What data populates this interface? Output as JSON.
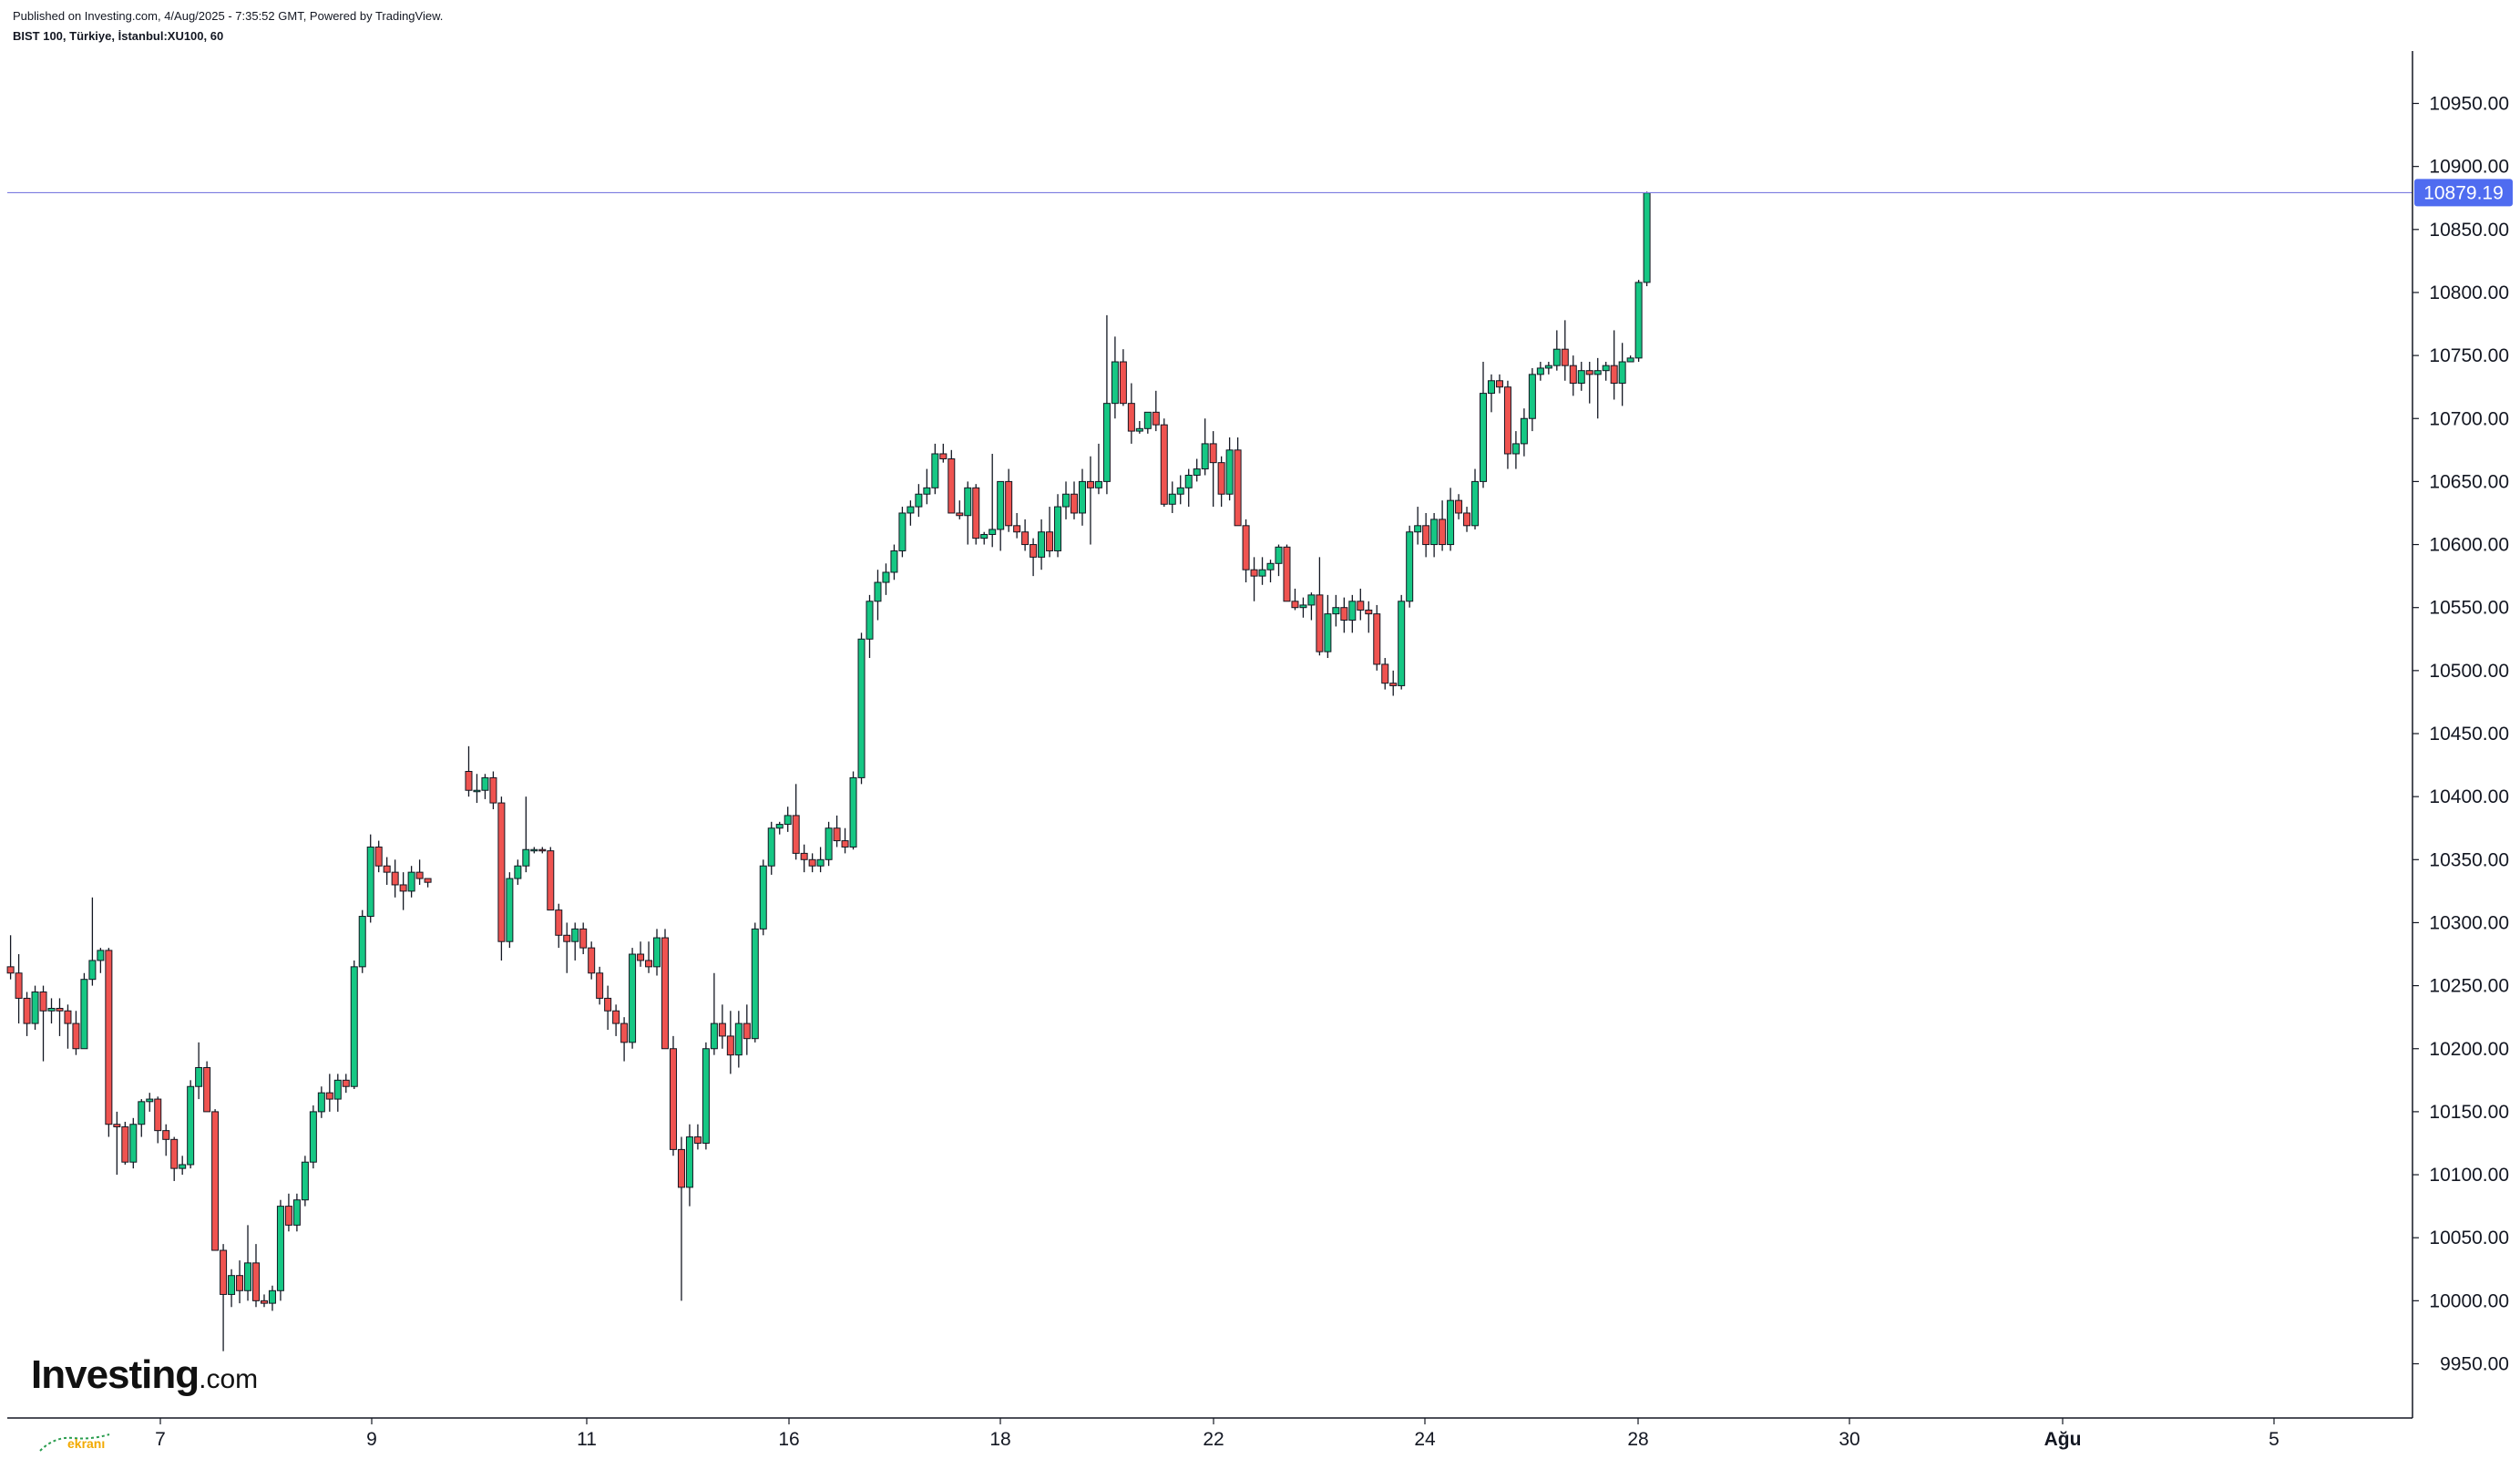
{
  "header": {
    "published": "Published on Investing.com, 4/Aug/2025 - 7:35:52 GMT, Powered by TradingView.",
    "symbol": "BIST 100, Türkiye, İstanbul:XU100, 60"
  },
  "logo": {
    "main": "Investing",
    "suffix": ".com"
  },
  "watermark": "ekranı",
  "colors": {
    "up": "#089981",
    "upBody": "#16c784",
    "down": "#ef5350",
    "wick": "#131722",
    "priceLine": "#7b7be0",
    "priceTag": "#4f6cf0"
  },
  "chart_data": {
    "type": "candlestick",
    "price_label": "10879.19",
    "last_price": 10879.19,
    "ylim": [
      9910,
      10990
    ],
    "y_ticks": [
      "9950.00",
      "10000.00",
      "10050.00",
      "10100.00",
      "10150.00",
      "10200.00",
      "10250.00",
      "10300.00",
      "10350.00",
      "10400.00",
      "10450.00",
      "10500.00",
      "10550.00",
      "10600.00",
      "10650.00",
      "10700.00",
      "10750.00",
      "10800.00",
      "10850.00",
      "10900.00",
      "10950.00"
    ],
    "x_ticks": [
      "7",
      "9",
      "11",
      "16",
      "18",
      "22",
      "24",
      "28",
      "30",
      "Ağu",
      "5"
    ],
    "grid": false,
    "candles": [
      [
        10265,
        10290,
        10255,
        10260
      ],
      [
        10260,
        10275,
        10220,
        10240
      ],
      [
        10240,
        10245,
        10210,
        10220
      ],
      [
        10220,
        10250,
        10215,
        10245
      ],
      [
        10245,
        10250,
        10190,
        10230
      ],
      [
        10230,
        10240,
        10220,
        10232
      ],
      [
        10232,
        10240,
        10210,
        10230
      ],
      [
        10230,
        10235,
        10200,
        10220
      ],
      [
        10220,
        10230,
        10195,
        10200
      ],
      [
        10200,
        10260,
        10200,
        10255
      ],
      [
        10255,
        10320,
        10250,
        10270
      ],
      [
        10270,
        10280,
        10260,
        10278
      ],
      [
        10278,
        10280,
        10130,
        10140
      ],
      [
        10140,
        10150,
        10100,
        10138
      ],
      [
        10138,
        10142,
        10108,
        10110
      ],
      [
        10110,
        10145,
        10105,
        10140
      ],
      [
        10140,
        10160,
        10130,
        10158
      ],
      [
        10158,
        10165,
        10150,
        10160
      ],
      [
        10160,
        10162,
        10125,
        10135
      ],
      [
        10135,
        10140,
        10115,
        10128
      ],
      [
        10128,
        10130,
        10095,
        10105
      ],
      [
        10105,
        10115,
        10100,
        10108
      ],
      [
        10108,
        10175,
        10105,
        10170
      ],
      [
        10170,
        10205,
        10160,
        10185
      ],
      [
        10185,
        10190,
        10150,
        10150
      ],
      [
        10150,
        10152,
        10040,
        10040
      ],
      [
        10040,
        10045,
        9960,
        10005
      ],
      [
        10005,
        10025,
        9995,
        10020
      ],
      [
        10020,
        10032,
        9998,
        10008
      ],
      [
        10008,
        10060,
        10000,
        10030
      ],
      [
        10030,
        10045,
        9995,
        10000
      ],
      [
        10000,
        10005,
        9995,
        9998
      ],
      [
        9998,
        10012,
        9992,
        10008
      ],
      [
        10008,
        10080,
        10000,
        10075
      ],
      [
        10075,
        10085,
        10055,
        10060
      ],
      [
        10060,
        10085,
        10055,
        10080
      ],
      [
        10080,
        10115,
        10075,
        10110
      ],
      [
        10110,
        10155,
        10105,
        10150
      ],
      [
        10150,
        10170,
        10145,
        10165
      ],
      [
        10165,
        10180,
        10150,
        10160
      ],
      [
        10160,
        10180,
        10150,
        10175
      ],
      [
        10175,
        10180,
        10165,
        10170
      ],
      [
        10170,
        10270,
        10168,
        10265
      ],
      [
        10265,
        10310,
        10260,
        10305
      ],
      [
        10305,
        10370,
        10300,
        10360
      ],
      [
        10360,
        10365,
        10340,
        10345
      ],
      [
        10345,
        10352,
        10330,
        10340
      ],
      [
        10340,
        10350,
        10320,
        10330
      ],
      [
        10330,
        10340,
        10310,
        10325
      ],
      [
        10325,
        10345,
        10320,
        10340
      ],
      [
        10340,
        10350,
        10330,
        10335
      ],
      [
        10335,
        10335,
        10328,
        10332
      ],
      null,
      null,
      null,
      null,
      [
        10420,
        10440,
        10400,
        10405
      ],
      [
        10405,
        10418,
        10395,
        10405
      ],
      [
        10405,
        10418,
        10398,
        10415
      ],
      [
        10415,
        10420,
        10390,
        10395
      ],
      [
        10395,
        10400,
        10270,
        10285
      ],
      [
        10285,
        10340,
        10280,
        10335
      ],
      [
        10335,
        10350,
        10330,
        10345
      ],
      [
        10345,
        10400,
        10340,
        10358
      ],
      [
        10358,
        10360,
        10355,
        10358
      ],
      [
        10358,
        10360,
        10355,
        10357
      ],
      [
        10357,
        10360,
        10310,
        10310
      ],
      [
        10310,
        10315,
        10280,
        10290
      ],
      [
        10290,
        10300,
        10260,
        10285
      ],
      [
        10285,
        10300,
        10270,
        10295
      ],
      [
        10295,
        10300,
        10275,
        10280
      ],
      [
        10280,
        10285,
        10255,
        10260
      ],
      [
        10260,
        10265,
        10235,
        10240
      ],
      [
        10240,
        10250,
        10215,
        10230
      ],
      [
        10230,
        10235,
        10210,
        10220
      ],
      [
        10220,
        10225,
        10190,
        10205
      ],
      [
        10205,
        10280,
        10200,
        10275
      ],
      [
        10275,
        10285,
        10265,
        10270
      ],
      [
        10270,
        10285,
        10260,
        10265
      ],
      [
        10265,
        10295,
        10258,
        10288
      ],
      [
        10288,
        10295,
        10200,
        10200
      ],
      [
        10200,
        10210,
        10115,
        10120
      ],
      [
        10120,
        10130,
        10000,
        10090
      ],
      [
        10090,
        10140,
        10075,
        10130
      ],
      [
        10130,
        10140,
        10120,
        10125
      ],
      [
        10125,
        10205,
        10120,
        10200
      ],
      [
        10200,
        10260,
        10195,
        10220
      ],
      [
        10220,
        10235,
        10200,
        10210
      ],
      [
        10210,
        10230,
        10180,
        10195
      ],
      [
        10195,
        10230,
        10185,
        10220
      ],
      [
        10220,
        10235,
        10195,
        10208
      ],
      [
        10208,
        10300,
        10205,
        10295
      ],
      [
        10295,
        10350,
        10290,
        10345
      ],
      [
        10345,
        10380,
        10338,
        10375
      ],
      [
        10375,
        10380,
        10370,
        10378
      ],
      [
        10378,
        10392,
        10372,
        10385
      ],
      [
        10385,
        10410,
        10350,
        10355
      ],
      [
        10355,
        10362,
        10340,
        10350
      ],
      [
        10350,
        10355,
        10340,
        10345
      ],
      [
        10345,
        10360,
        10340,
        10350
      ],
      [
        10350,
        10380,
        10345,
        10375
      ],
      [
        10375,
        10385,
        10360,
        10365
      ],
      [
        10365,
        10375,
        10355,
        10360
      ],
      [
        10360,
        10420,
        10358,
        10415
      ],
      [
        10415,
        10530,
        10410,
        10525
      ],
      [
        10525,
        10560,
        10510,
        10555
      ],
      [
        10555,
        10580,
        10540,
        10570
      ],
      [
        10570,
        10585,
        10560,
        10578
      ],
      [
        10578,
        10600,
        10572,
        10595
      ],
      [
        10595,
        10630,
        10590,
        10625
      ],
      [
        10625,
        10635,
        10615,
        10630
      ],
      [
        10630,
        10648,
        10622,
        10640
      ],
      [
        10640,
        10660,
        10632,
        10645
      ],
      [
        10645,
        10680,
        10640,
        10672
      ],
      [
        10672,
        10680,
        10665,
        10668
      ],
      [
        10668,
        10675,
        10625,
        10625
      ],
      [
        10625,
        10635,
        10620,
        10623
      ],
      [
        10623,
        10650,
        10600,
        10645
      ],
      [
        10645,
        10648,
        10600,
        10605
      ],
      [
        10605,
        10610,
        10600,
        10608
      ],
      [
        10608,
        10672,
        10598,
        10612
      ],
      [
        10612,
        10618,
        10595,
        10650
      ],
      [
        10650,
        10660,
        10610,
        10615
      ],
      [
        10615,
        10625,
        10605,
        10610
      ],
      [
        10610,
        10620,
        10595,
        10600
      ],
      [
        10600,
        10605,
        10575,
        10590
      ],
      [
        10590,
        10620,
        10580,
        10610
      ],
      [
        10610,
        10630,
        10590,
        10595
      ],
      [
        10595,
        10640,
        10590,
        10630
      ],
      [
        10630,
        10650,
        10620,
        10640
      ],
      [
        10640,
        10650,
        10620,
        10625
      ],
      [
        10625,
        10660,
        10615,
        10650
      ],
      [
        10650,
        10670,
        10600,
        10645
      ],
      [
        10645,
        10680,
        10640,
        10650
      ],
      [
        10650,
        10782,
        10640,
        10712
      ],
      [
        10712,
        10765,
        10700,
        10745
      ],
      [
        10745,
        10755,
        10710,
        10712
      ],
      [
        10712,
        10728,
        10680,
        10690
      ],
      [
        10690,
        10698,
        10688,
        10692
      ],
      [
        10692,
        10705,
        10688,
        10705
      ],
      [
        10705,
        10722,
        10690,
        10695
      ],
      [
        10695,
        10700,
        10630,
        10632
      ],
      [
        10632,
        10650,
        10625,
        10640
      ],
      [
        10640,
        10655,
        10632,
        10645
      ],
      [
        10645,
        10660,
        10630,
        10655
      ],
      [
        10655,
        10668,
        10650,
        10660
      ],
      [
        10660,
        10700,
        10655,
        10680
      ],
      [
        10680,
        10690,
        10630,
        10665
      ],
      [
        10665,
        10670,
        10630,
        10640
      ],
      [
        10640,
        10685,
        10635,
        10675
      ],
      [
        10675,
        10685,
        10615,
        10615
      ],
      [
        10615,
        10620,
        10570,
        10580
      ],
      [
        10580,
        10590,
        10555,
        10575
      ],
      [
        10575,
        10590,
        10568,
        10580
      ],
      [
        10580,
        10588,
        10570,
        10585
      ],
      [
        10585,
        10600,
        10575,
        10598
      ],
      [
        10598,
        10600,
        10555,
        10555
      ],
      [
        10555,
        10565,
        10548,
        10550
      ],
      [
        10550,
        10558,
        10542,
        10552
      ],
      [
        10552,
        10562,
        10540,
        10560
      ],
      [
        10560,
        10590,
        10512,
        10515
      ],
      [
        10515,
        10560,
        10510,
        10545
      ],
      [
        10545,
        10560,
        10535,
        10550
      ],
      [
        10550,
        10558,
        10530,
        10540
      ],
      [
        10540,
        10560,
        10530,
        10555
      ],
      [
        10555,
        10565,
        10540,
        10548
      ],
      [
        10548,
        10555,
        10530,
        10545
      ],
      [
        10545,
        10552,
        10500,
        10505
      ],
      [
        10505,
        10510,
        10485,
        10490
      ],
      [
        10490,
        10500,
        10480,
        10488
      ],
      [
        10488,
        10560,
        10485,
        10555
      ],
      [
        10555,
        10615,
        10550,
        10610
      ],
      [
        10610,
        10630,
        10600,
        10615
      ],
      [
        10615,
        10625,
        10590,
        10600
      ],
      [
        10600,
        10625,
        10590,
        10620
      ],
      [
        10620,
        10635,
        10595,
        10600
      ],
      [
        10600,
        10645,
        10595,
        10635
      ],
      [
        10635,
        10640,
        10620,
        10625
      ],
      [
        10625,
        10630,
        10610,
        10615
      ],
      [
        10615,
        10660,
        10612,
        10650
      ],
      [
        10650,
        10745,
        10645,
        10720
      ],
      [
        10720,
        10735,
        10705,
        10730
      ],
      [
        10730,
        10735,
        10720,
        10725
      ],
      [
        10725,
        10730,
        10660,
        10672
      ],
      [
        10672,
        10690,
        10660,
        10680
      ],
      [
        10680,
        10708,
        10670,
        10700
      ],
      [
        10700,
        10740,
        10690,
        10735
      ],
      [
        10735,
        10745,
        10730,
        10740
      ],
      [
        10740,
        10745,
        10735,
        10742
      ],
      [
        10742,
        10770,
        10738,
        10755
      ],
      [
        10755,
        10778,
        10730,
        10742
      ],
      [
        10742,
        10750,
        10718,
        10728
      ],
      [
        10728,
        10745,
        10722,
        10738
      ],
      [
        10738,
        10745,
        10712,
        10735
      ],
      [
        10735,
        10748,
        10700,
        10738
      ],
      [
        10738,
        10745,
        10730,
        10742
      ],
      [
        10742,
        10770,
        10715,
        10728
      ],
      [
        10728,
        10760,
        10710,
        10745
      ],
      [
        10745,
        10750,
        10745,
        10748
      ],
      [
        10748,
        10810,
        10745,
        10808
      ],
      [
        10808,
        10880,
        10805,
        10879
      ]
    ]
  }
}
